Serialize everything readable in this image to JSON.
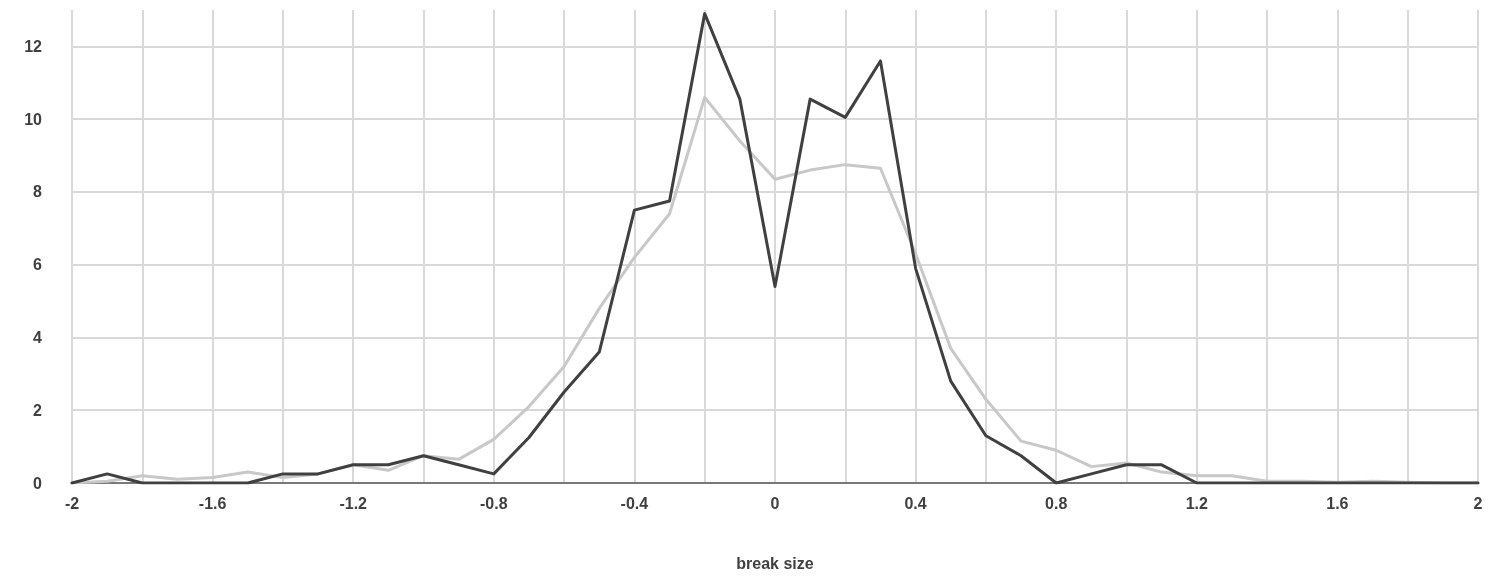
{
  "chart_data": {
    "type": "line",
    "xlabel": "break size",
    "x": [
      -2,
      -1.9,
      -1.8,
      -1.7,
      -1.6,
      -1.5,
      -1.4,
      -1.3,
      -1.2,
      -1.1,
      -1,
      -0.9,
      -0.8,
      -0.7,
      -0.6,
      -0.5,
      -0.4,
      -0.3,
      -0.2,
      -0.1,
      0,
      0.1,
      0.2,
      0.3,
      0.4,
      0.5,
      0.6,
      0.7,
      0.8,
      0.9,
      1,
      1.1,
      1.2,
      1.3,
      1.4,
      1.5,
      1.6,
      1.7,
      1.8,
      1.9,
      2
    ],
    "series": [
      {
        "color": "#c8c8c8",
        "values": [
          0,
          0.05,
          0.2,
          0.1,
          0.15,
          0.3,
          0.15,
          0.25,
          0.5,
          0.35,
          0.75,
          0.65,
          1.2,
          2.1,
          3.2,
          4.8,
          6.2,
          7.4,
          10.6,
          9.4,
          8.35,
          8.6,
          8.75,
          8.65,
          6.3,
          3.7,
          2.3,
          1.15,
          0.9,
          0.45,
          0.55,
          0.3,
          0.2,
          0.2,
          0.05,
          0.05,
          0.02,
          0.05,
          0.02,
          0,
          0
        ]
      },
      {
        "color": "#404040",
        "values": [
          0,
          0.25,
          0,
          0,
          0,
          0,
          0.25,
          0.25,
          0.5,
          0.5,
          0.75,
          0.5,
          0.25,
          1.25,
          2.5,
          3.6,
          7.5,
          7.75,
          12.9,
          10.55,
          5.4,
          10.55,
          10.05,
          11.6,
          5.9,
          2.8,
          1.3,
          0.75,
          0,
          0.25,
          0.5,
          0.5,
          0,
          0,
          0,
          0,
          0,
          0,
          0,
          0,
          0
        ]
      }
    ],
    "xlim": [
      -2,
      2
    ],
    "xticks": [
      -2,
      {
        "value": -1.8,
        "label": null
      },
      -1.6,
      {
        "value": -1.4,
        "label": null
      },
      -1.2,
      {
        "value": -1,
        "label": null
      },
      -0.8,
      {
        "value": -0.6,
        "label": null
      },
      -0.4,
      {
        "value": -0.2,
        "label": null
      },
      0,
      {
        "value": 0.2,
        "label": null
      },
      0.4,
      {
        "value": 0.6,
        "label": null
      },
      0.8,
      {
        "value": 1,
        "label": null
      },
      1.2,
      {
        "value": 1.4,
        "label": null
      },
      1.6,
      {
        "value": 1.8,
        "label": null
      },
      2
    ],
    "ylim": [
      0,
      13
    ],
    "yticks": [
      0,
      2,
      4,
      6,
      8,
      10,
      12
    ],
    "grid": true,
    "marker": "none",
    "line_style": "solid"
  }
}
